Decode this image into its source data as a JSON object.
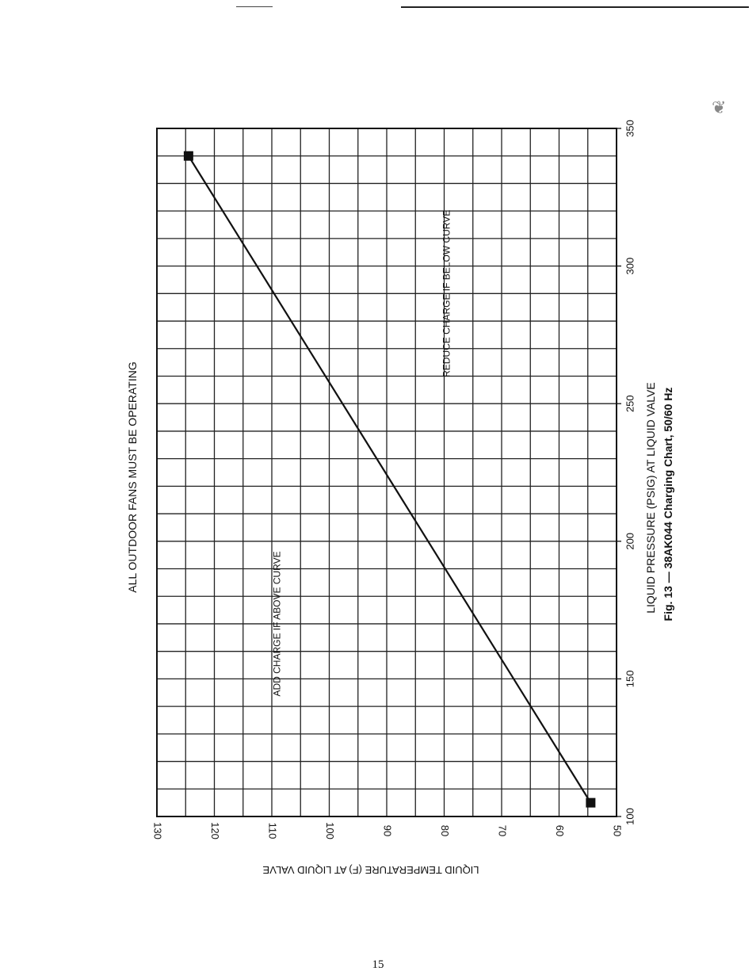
{
  "page": {
    "number": "15"
  },
  "chart_data": {
    "type": "line",
    "title": "Fig. 13 — 38AK044 Charging Chart, 50/60 Hz",
    "subtitle": "ALL OUTDOOR FANS MUST BE OPERATING",
    "xlabel": "LIQUID PRESSURE (PSIG) AT LIQUID VALVE",
    "ylabel": "LIQUID TEMPERATURE (F) AT LIQUID VALVE",
    "xlim": [
      100,
      350
    ],
    "ylim": [
      50,
      130
    ],
    "x_ticks": [
      100,
      150,
      200,
      250,
      300,
      350
    ],
    "x_tick_labels": [
      "100",
      "150",
      "200",
      "250",
      "300",
      "350"
    ],
    "y_ticks": [
      50,
      60,
      70,
      80,
      90,
      100,
      110,
      120,
      130
    ],
    "y_tick_labels": [
      "50",
      "60",
      "70",
      "80",
      "90",
      "100",
      "110",
      "120",
      "130"
    ],
    "grid": true,
    "series": [
      {
        "x": [
          105,
          340
        ],
        "y": [
          54.5,
          124.5
        ]
      }
    ],
    "annotations": [
      {
        "text": "ADD CHARGE IF ABOVE CURVE",
        "x": 170,
        "y": 109
      },
      {
        "text": "REDUCE CHARGE IF BELOW CURVE",
        "x": 290,
        "y": 79.5
      }
    ]
  }
}
